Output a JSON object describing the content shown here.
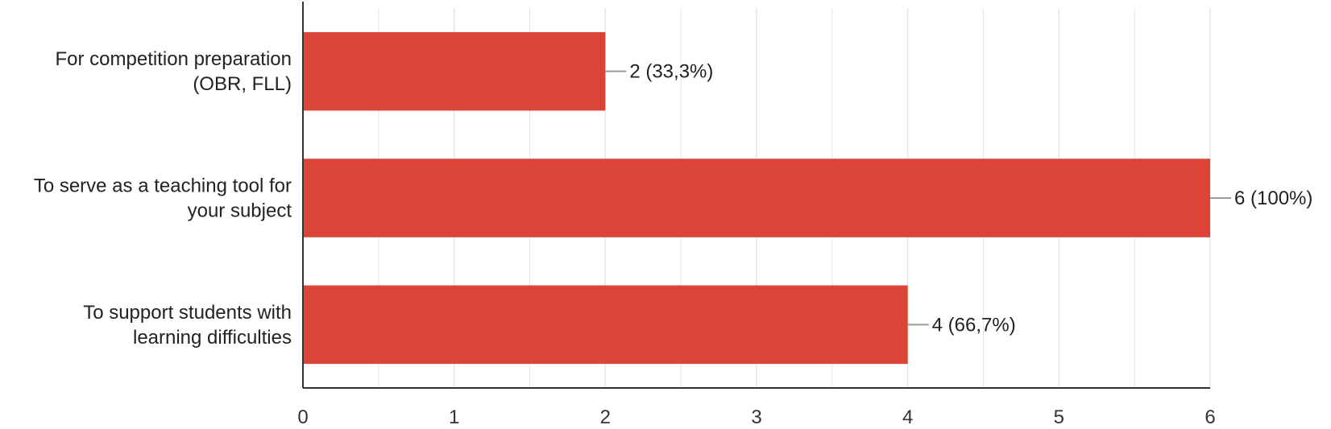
{
  "chart_data": {
    "type": "bar",
    "orientation": "horizontal",
    "categories": [
      [
        "For competition preparation",
        "(OBR, FLL)"
      ],
      [
        "To serve as a teaching tool for",
        "your subject"
      ],
      [
        "To support students with",
        "learning difficulties"
      ]
    ],
    "values": [
      2,
      6,
      4
    ],
    "data_labels": [
      "2 (33,3%)",
      "6 (100%)",
      "4 (66,7%)"
    ],
    "xlim": [
      0,
      6
    ],
    "x_ticks": [
      "0",
      "1",
      "2",
      "3",
      "4",
      "5",
      "6"
    ],
    "grid": true,
    "colors": {
      "bar": "#db4437",
      "grid": "#e6e6e6",
      "axis": "#333333",
      "leader": "#999999"
    }
  }
}
